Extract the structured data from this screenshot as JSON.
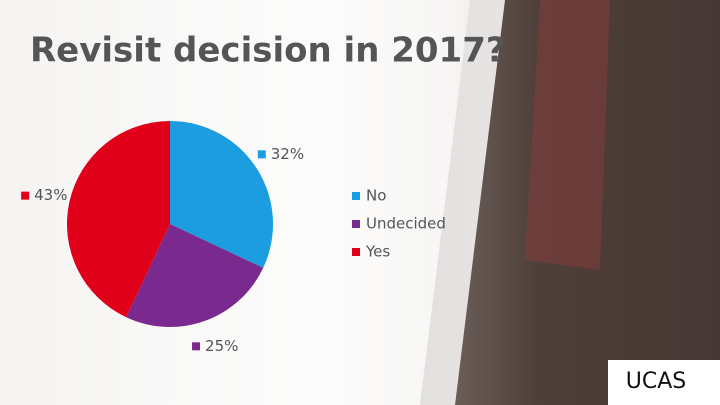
{
  "chart_data": {
    "type": "pie",
    "title": "Revisit decision in 2017?",
    "categories": [
      "No",
      "Undecided",
      "Yes"
    ],
    "values": [
      32,
      25,
      43
    ],
    "value_labels": [
      "32%",
      "25%",
      "43%"
    ],
    "colors": [
      "#1b9ddf",
      "#7a2a8e",
      "#e1001a"
    ],
    "legend": "right"
  },
  "logo": "UCAS"
}
